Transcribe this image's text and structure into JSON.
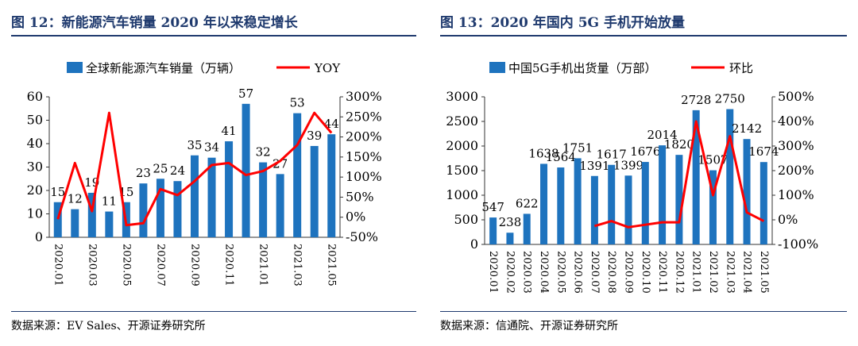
{
  "charts": [
    {
      "title": "图 12：新能源汽车销量 2020 年以来稳定增长",
      "source": "数据来源：EV Sales、开源证券研究所",
      "chart_data": {
        "type": "bar",
        "categories": [
          "2020.01",
          "2020.02",
          "2020.03",
          "2020.04",
          "2020.05",
          "2020.06",
          "2020.07",
          "2020.08",
          "2020.09",
          "2020.10",
          "2020.11",
          "2020.12",
          "2021.01",
          "2021.02",
          "2021.03",
          "2021.04",
          "2021.05"
        ],
        "x_tick_labels": [
          "2020.01",
          "2020.03",
          "2020.05",
          "2020.07",
          "2020.09",
          "2020.11",
          "2021.01",
          "2021.03",
          "2021.05"
        ],
        "x_tick_indices": [
          0,
          2,
          4,
          6,
          8,
          10,
          12,
          14,
          16
        ],
        "series": [
          {
            "name": "全球新能源汽车销量（万辆）",
            "type": "bar",
            "axis": "left",
            "color": "#1e73be",
            "values": [
              15,
              12,
              19,
              11,
              15,
              23,
              25,
              24,
              35,
              34,
              41,
              57,
              32,
              27,
              53,
              39,
              44
            ],
            "labels": [
              "15",
              "12",
              "19",
              "11",
              "15",
              "23",
              "25",
              "24",
              "35",
              "34",
              "41",
              "57",
              "32",
              "27",
              "53",
              "39",
              "44"
            ]
          },
          {
            "name": "YOY",
            "type": "line",
            "axis": "right",
            "color": "#ff0000",
            "values": [
              -5,
              135,
              15,
              260,
              -20,
              -15,
              70,
              55,
              90,
              130,
              135,
              105,
              115,
              140,
              180,
              260,
              210
            ]
          }
        ],
        "y_left": {
          "min": 0,
          "max": 60,
          "ticks": [
            0,
            10,
            20,
            30,
            40,
            50,
            60
          ],
          "tick_labels": [
            "0",
            "10",
            "20",
            "30",
            "40",
            "50",
            "60"
          ]
        },
        "y_right": {
          "min": -50,
          "max": 300,
          "ticks": [
            -50,
            0,
            50,
            100,
            150,
            200,
            250,
            300
          ],
          "tick_labels": [
            "-50%",
            "0%",
            "50%",
            "100%",
            "150%",
            "200%",
            "250%",
            "300%"
          ]
        },
        "legend": "top"
      }
    },
    {
      "title": "图 13：2020 年国内 5G 手机开始放量",
      "source": "数据来源：信通院、开源证券研究所",
      "chart_data": {
        "type": "bar",
        "categories": [
          "2020.01",
          "2020.02",
          "2020.03",
          "2020.04",
          "2020.05",
          "2020.06",
          "2020.07",
          "2020.08",
          "2020.09",
          "2020.10",
          "2020.11",
          "2020.12",
          "2021.01",
          "2021.02",
          "2021.03",
          "2021.04",
          "2021.05"
        ],
        "x_tick_labels": [
          "2020.01",
          "2020.02",
          "2020.03",
          "2020.04",
          "2020.05",
          "2020.06",
          "2020.07",
          "2020.08",
          "2020.09",
          "2020.10",
          "2020.11",
          "2020.12",
          "2021.01",
          "2021.02",
          "2021.03",
          "2021.04",
          "2021.05"
        ],
        "x_tick_indices": [
          0,
          1,
          2,
          3,
          4,
          5,
          6,
          7,
          8,
          9,
          10,
          11,
          12,
          13,
          14,
          15,
          16
        ],
        "series": [
          {
            "name": "中国5G手机出货量（万部）",
            "type": "bar",
            "axis": "left",
            "color": "#1e73be",
            "values": [
              547,
              238,
              622,
              1638,
              1564,
              1751,
              1391,
              1617,
              1399,
              1676,
              2014,
              1820,
              2728,
              1507,
              2750,
              2142,
              1674
            ],
            "labels": [
              "547",
              "238",
              "622",
              "1638",
              "1564",
              "1751",
              "1391",
              "1617",
              "1399",
              "1676",
              "2014",
              "1820",
              "2728",
              "1507",
              "2750",
              "2142",
              "1674"
            ]
          },
          {
            "name": "环比",
            "type": "line",
            "axis": "right",
            "color": "#ff0000",
            "values": [
              null,
              null,
              null,
              null,
              null,
              null,
              -25,
              -5,
              -30,
              -20,
              -10,
              -10,
              400,
              100,
              340,
              30,
              -5
            ]
          }
        ],
        "y_left": {
          "min": 0,
          "max": 3000,
          "ticks": [
            0,
            500,
            1000,
            1500,
            2000,
            2500,
            3000
          ],
          "tick_labels": [
            "0",
            "500",
            "1000",
            "1500",
            "2000",
            "2500",
            "3000"
          ]
        },
        "y_right": {
          "min": -100,
          "max": 500,
          "ticks": [
            -100,
            0,
            100,
            200,
            300,
            400,
            500
          ],
          "tick_labels": [
            "-100%",
            "0%",
            "100%",
            "200%",
            "300%",
            "400%",
            "500%"
          ]
        },
        "legend": "top"
      }
    }
  ]
}
